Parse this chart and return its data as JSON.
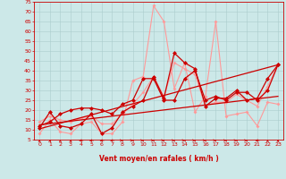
{
  "xlabel": "Vent moyen/en rafales ( km/h )",
  "xlim": [
    -0.5,
    23.5
  ],
  "ylim": [
    5,
    75
  ],
  "yticks": [
    5,
    10,
    15,
    20,
    25,
    30,
    35,
    40,
    45,
    50,
    55,
    60,
    65,
    70,
    75
  ],
  "xticks": [
    0,
    1,
    2,
    3,
    4,
    5,
    6,
    7,
    8,
    9,
    10,
    11,
    12,
    13,
    14,
    15,
    16,
    17,
    18,
    19,
    20,
    21,
    22,
    23
  ],
  "bg_color": "#cce8e8",
  "grid_color": "#aacccc",
  "axis_color": "#cc0000",
  "label_color": "#cc0000",
  "line_dark1_x": [
    0,
    1,
    2,
    3,
    4,
    5,
    6,
    7,
    8,
    9,
    10,
    11,
    12,
    13,
    14,
    15,
    16,
    17,
    18,
    19,
    20,
    21,
    22,
    23
  ],
  "line_dark1_y": [
    11,
    19,
    12,
    11,
    13,
    18,
    8,
    11,
    19,
    22,
    25,
    37,
    26,
    49,
    44,
    41,
    22,
    26,
    26,
    30,
    25,
    26,
    36,
    43
  ],
  "line_dark2_x": [
    0,
    1,
    2,
    3,
    4,
    5,
    6,
    7,
    8,
    9,
    10,
    11,
    12,
    13,
    14,
    15,
    16,
    17,
    18,
    19,
    20,
    21,
    22,
    23
  ],
  "line_dark2_y": [
    12,
    14,
    18,
    20,
    21,
    21,
    20,
    18,
    23,
    25,
    36,
    36,
    25,
    25,
    36,
    40,
    25,
    27,
    25,
    29,
    29,
    25,
    30,
    43
  ],
  "line_light1_x": [
    0,
    1,
    2,
    3,
    4,
    5,
    6,
    7,
    8,
    9,
    10,
    11,
    12,
    13,
    14,
    15,
    16,
    17,
    18,
    19,
    20,
    21,
    22,
    23
  ],
  "line_light1_y": [
    8,
    15,
    9,
    8,
    13,
    14,
    8,
    8,
    14,
    35,
    37,
    73,
    65,
    31,
    44,
    19,
    27,
    65,
    17,
    18,
    19,
    12,
    24,
    23
  ],
  "line_light2_x": [
    0,
    1,
    2,
    3,
    4,
    5,
    6,
    7,
    8,
    9,
    10,
    11,
    12,
    13,
    14,
    15,
    16,
    17,
    18,
    19,
    20,
    21,
    22,
    23
  ],
  "line_light2_y": [
    14,
    17,
    15,
    14,
    16,
    17,
    13,
    13,
    18,
    23,
    29,
    37,
    27,
    44,
    41,
    38,
    22,
    24,
    24,
    28,
    25,
    22,
    32,
    43
  ],
  "trend1_x": [
    0,
    23
  ],
  "trend1_y": [
    10.5,
    43
  ],
  "trend2_x": [
    0,
    23
  ],
  "trend2_y": [
    12.5,
    27
  ],
  "dark_color": "#cc0000",
  "light_color": "#ff9999",
  "trend_color": "#cc0000",
  "marker": "D",
  "msize_dark": 2.5,
  "msize_light": 2.0,
  "lw_dark": 0.9,
  "lw_light": 0.8,
  "lw_trend": 0.9,
  "arrows_x": [
    0,
    1,
    2,
    3,
    4,
    5,
    6,
    7,
    8,
    9,
    10,
    11,
    12,
    13,
    14,
    15,
    16,
    17,
    18,
    19,
    20,
    21,
    22,
    23
  ],
  "arrows_type": [
    "U",
    "U",
    "U",
    "U",
    "L",
    "L",
    "L",
    "L",
    "R",
    "R",
    "R",
    "R",
    "R",
    "R",
    "R",
    "R",
    "R",
    "R",
    "R",
    "R",
    "R",
    "L",
    "U",
    "U"
  ]
}
